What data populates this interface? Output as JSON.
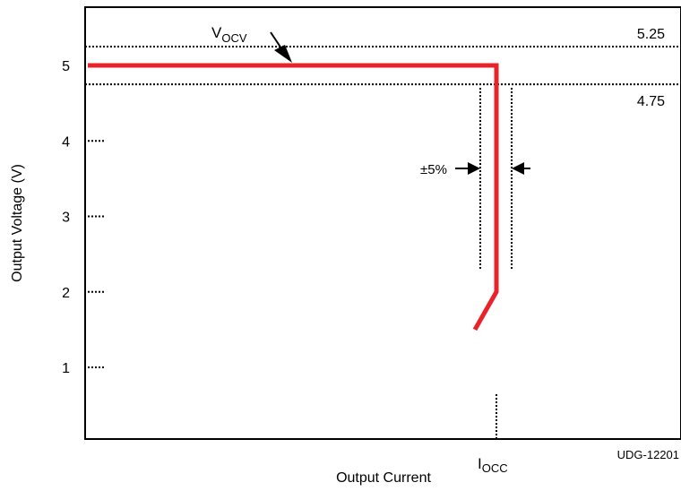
{
  "chart_data": {
    "type": "line",
    "xlabel": "Output Current",
    "ylabel": "Output Voltage (V)",
    "ylim": [
      0,
      5.7
    ],
    "y_ticks": [
      "1",
      "2",
      "3",
      "4",
      "5"
    ],
    "grid": false,
    "series": [
      {
        "color": "#e8232a",
        "points": [
          {
            "x": "0",
            "y": 5.0
          },
          {
            "x": "I_OCC",
            "y": 5.0
          },
          {
            "x": "I_OCC",
            "y": 2.0
          },
          {
            "x": "I_OCC - 5%",
            "y": 1.5
          }
        ]
      }
    ],
    "reference_lines": [
      {
        "y": 5.25,
        "label": "5.25"
      },
      {
        "y": 4.75,
        "label": "4.75"
      }
    ],
    "annotations": {
      "vocv_main": "V",
      "vocv_sub": "OCV",
      "tolerance": "±5%",
      "iocc_main": "I",
      "iocc_sub": "OCC",
      "figure_id": "UDG-12201"
    }
  }
}
